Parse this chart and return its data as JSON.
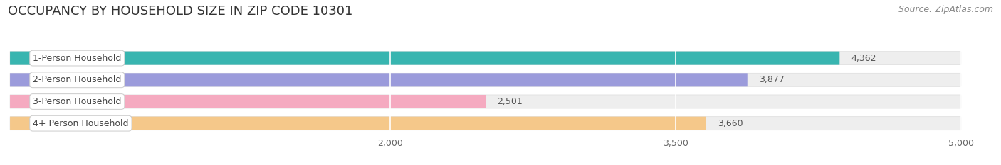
{
  "title": "OCCUPANCY BY HOUSEHOLD SIZE IN ZIP CODE 10301",
  "source": "Source: ZipAtlas.com",
  "categories": [
    "1-Person Household",
    "2-Person Household",
    "3-Person Household",
    "4+ Person Household"
  ],
  "values": [
    4362,
    3877,
    2501,
    3660
  ],
  "bar_colors": [
    "#38b5b0",
    "#9b9bdb",
    "#f5aac0",
    "#f5c88a"
  ],
  "xlim_min": 0,
  "xlim_max": 5000,
  "xstart": 0,
  "xticks": [
    2000,
    3500,
    5000
  ],
  "background_color": "#ffffff",
  "bar_bg_color": "#eeeeee",
  "title_fontsize": 13,
  "source_fontsize": 9,
  "label_fontsize": 9,
  "tick_fontsize": 9,
  "value_fontsize": 9,
  "bar_height": 0.62
}
